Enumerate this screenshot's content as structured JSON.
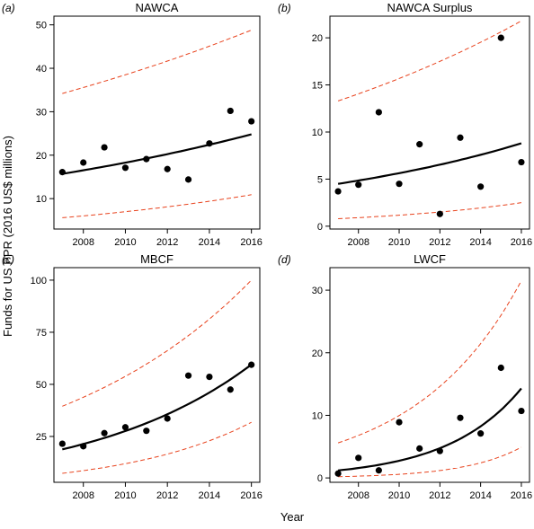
{
  "xlabel": "Year",
  "ylabel": "Funds for US PPR (2016 US$ millions)",
  "chart_data": [
    {
      "type": "scatter",
      "letter": "(a)",
      "title": "NAWCA",
      "x": [
        2007,
        2008,
        2009,
        2010,
        2011,
        2012,
        2013,
        2014,
        2015,
        2016
      ],
      "y": [
        16.1,
        18.3,
        21.8,
        17.1,
        19.1,
        16.8,
        14.4,
        22.7,
        30.2,
        27.8
      ],
      "fit": {
        "x": [
          2007,
          2016
        ],
        "y": [
          15.7,
          24.8
        ]
      },
      "ci_lower": {
        "x": [
          2007,
          2016
        ],
        "y": [
          5.6,
          10.9
        ]
      },
      "ci_upper": {
        "x": [
          2007,
          2016
        ],
        "y": [
          34.2,
          48.8
        ]
      },
      "xlim": [
        2006.6,
        2016.4
      ],
      "ylim": [
        3,
        52
      ],
      "xticks": [
        2008,
        2010,
        2012,
        2014,
        2016
      ],
      "yticks": [
        10,
        20,
        30,
        40,
        50
      ]
    },
    {
      "type": "scatter",
      "letter": "(b)",
      "title": "NAWCA Surplus",
      "x": [
        2007,
        2008,
        2009,
        2010,
        2011,
        2012,
        2013,
        2014,
        2015,
        2016
      ],
      "y": [
        3.7,
        4.4,
        12.1,
        4.5,
        8.7,
        1.3,
        9.4,
        4.2,
        20.0,
        6.8
      ],
      "fit": {
        "x": [
          2007,
          2016
        ],
        "y": [
          4.5,
          8.8
        ]
      },
      "ci_lower": {
        "x": [
          2007,
          2016
        ],
        "y": [
          0.8,
          2.5
        ]
      },
      "ci_upper": {
        "x": [
          2007,
          2016
        ],
        "y": [
          13.3,
          21.8
        ]
      },
      "xlim": [
        2006.6,
        2016.4
      ],
      "ylim": [
        -0.3,
        22.3
      ],
      "xticks": [
        2008,
        2010,
        2012,
        2014,
        2016
      ],
      "yticks": [
        0,
        5,
        10,
        15,
        20
      ]
    },
    {
      "type": "scatter",
      "letter": "(c)",
      "title": "MBCF",
      "x": [
        2007,
        2008,
        2009,
        2010,
        2011,
        2012,
        2013,
        2014,
        2015,
        2016
      ],
      "y": [
        21.5,
        20.3,
        26.6,
        29.4,
        27.7,
        33.6,
        54.2,
        53.6,
        47.5,
        59.4
      ],
      "fit": {
        "x": [
          2007,
          2016
        ],
        "y": [
          18.8,
          59.5
        ]
      },
      "ci_lower": {
        "x": [
          2007,
          2016
        ],
        "y": [
          7.3,
          31.8
        ]
      },
      "ci_upper": {
        "x": [
          2007,
          2016
        ],
        "y": [
          39.5,
          100.0
        ]
      },
      "xlim": [
        2006.6,
        2016.4
      ],
      "ylim": [
        3,
        106
      ],
      "xticks": [
        2008,
        2010,
        2012,
        2014,
        2016
      ],
      "yticks": [
        25,
        50,
        75,
        100
      ]
    },
    {
      "type": "scatter",
      "letter": "(d)",
      "title": "LWCF",
      "x": [
        2007,
        2008,
        2009,
        2010,
        2011,
        2012,
        2013,
        2014,
        2015,
        2016
      ],
      "y": [
        0.7,
        3.2,
        1.2,
        8.9,
        4.7,
        4.3,
        9.6,
        7.1,
        17.6,
        10.7
      ],
      "fit": {
        "x": [
          2007,
          2016
        ],
        "y": [
          1.2,
          14.3
        ]
      },
      "ci_lower": {
        "x": [
          2007,
          2016
        ],
        "y": [
          0.2,
          4.9
        ]
      },
      "ci_upper": {
        "x": [
          2007,
          2016
        ],
        "y": [
          5.6,
          31.5
        ]
      },
      "xlim": [
        2006.6,
        2016.4
      ],
      "ylim": [
        -0.7,
        33.6
      ],
      "xticks": [
        2008,
        2010,
        2012,
        2014,
        2016
      ],
      "yticks": [
        0,
        10,
        20,
        30
      ]
    }
  ]
}
